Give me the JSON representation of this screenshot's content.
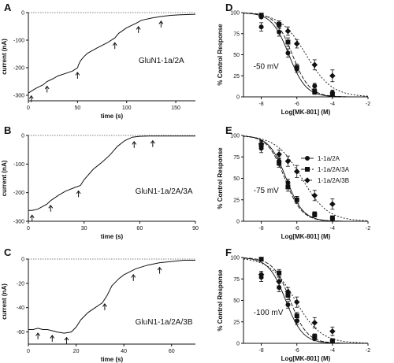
{
  "chart_data": [
    {
      "panel": "A",
      "type": "line",
      "xlabel": "time (s)",
      "ylabel": "current (nA)",
      "xlim": [
        0,
        170
      ],
      "ylim": [
        -320,
        0
      ],
      "xticks": [
        0,
        50,
        100,
        150
      ],
      "yticks": [
        0,
        -100,
        -200,
        -300
      ],
      "annotation": "GluN1-1a/2A",
      "trace": {
        "x": [
          0,
          3,
          8,
          15,
          19,
          25,
          30,
          40,
          45,
          50,
          51,
          53,
          56,
          60,
          70,
          80,
          88,
          92,
          100,
          110,
          115,
          125,
          135,
          145,
          155,
          170
        ],
        "y": [
          -292,
          -285,
          -274,
          -262,
          -250,
          -240,
          -230,
          -218,
          -212,
          -200,
          -190,
          -175,
          -162,
          -148,
          -128,
          -110,
          -92,
          -75,
          -55,
          -38,
          -28,
          -20,
          -14,
          -10,
          -8,
          -6
        ]
      },
      "arrows_x": [
        3,
        19,
        50,
        88,
        112,
        135
      ]
    },
    {
      "panel": "D",
      "type": "scatter",
      "xlabel": "Log[MK-801] (M)",
      "ylabel": "% Control Response",
      "xlim": [
        -9,
        -2
      ],
      "ylim": [
        0,
        100
      ],
      "xticks": [
        -8,
        -6,
        -4,
        -2
      ],
      "yticks": [
        0,
        25,
        50,
        75,
        100
      ],
      "annotation": "-50 mV",
      "series": [
        {
          "name": "1-1a/2A",
          "marker": "circle",
          "x": [
            -8,
            -7,
            -6.5,
            -6,
            -5,
            -4
          ],
          "y": [
            83,
            77,
            52,
            33,
            13,
            5
          ],
          "err": [
            5,
            5,
            5,
            4,
            3,
            3
          ]
        },
        {
          "name": "1-1a/2A/3A",
          "marker": "square",
          "x": [
            -8,
            -7,
            -6.5,
            -6,
            -5,
            -4
          ],
          "y": [
            97,
            86,
            65,
            35,
            6,
            3
          ],
          "err": [
            2,
            4,
            5,
            4,
            3,
            2
          ]
        },
        {
          "name": "1-1a/2A/3B",
          "marker": "diamond",
          "x": [
            -8,
            -7,
            -6.5,
            -6,
            -5,
            -4
          ],
          "y": [
            95,
            86,
            78,
            63,
            38,
            25
          ],
          "err": [
            2,
            4,
            5,
            5,
            6,
            7
          ]
        }
      ]
    },
    {
      "panel": "B",
      "type": "line",
      "xlabel": "time (s)",
      "ylabel": "current (nA)",
      "xlim": [
        0,
        90
      ],
      "ylim": [
        -300,
        0
      ],
      "xticks": [
        0,
        30,
        60,
        90
      ],
      "yticks": [
        0,
        -100,
        -200,
        -300
      ],
      "annotation": "GluN1-1a/2A/3A",
      "trace": {
        "x": [
          0,
          2,
          5,
          10,
          12,
          16,
          20,
          25,
          28,
          30,
          35,
          40,
          44,
          48,
          52,
          56,
          60,
          65,
          70,
          75,
          80,
          90
        ],
        "y": [
          -262,
          -262,
          -258,
          -240,
          -228,
          -210,
          -195,
          -182,
          -175,
          -155,
          -118,
          -92,
          -68,
          -38,
          -18,
          -6,
          -3,
          -2,
          -2,
          -2,
          -2,
          -2
        ]
      },
      "arrows_x": [
        2,
        12,
        27,
        57,
        67
      ]
    },
    {
      "panel": "E",
      "type": "scatter",
      "xlabel": "Log[MK-801] (M)",
      "ylabel": "% Control Response",
      "xlim": [
        -9,
        -2
      ],
      "ylim": [
        0,
        100
      ],
      "xticks": [
        -8,
        -6,
        -4,
        -2
      ],
      "yticks": [
        0,
        25,
        50,
        75,
        100
      ],
      "annotation": "-75 mV",
      "legend": [
        "1-1a/2A",
        "1-1a/2A/3A",
        "1-1a/2A/3B"
      ],
      "series": [
        {
          "name": "1-1a/2A",
          "marker": "circle",
          "x": [
            -8,
            -7,
            -6.5,
            -6,
            -5,
            -4
          ],
          "y": [
            85,
            70,
            45,
            25,
            8,
            3
          ],
          "err": [
            5,
            5,
            4,
            4,
            3,
            2
          ]
        },
        {
          "name": "1-1a/2A/3A",
          "marker": "square",
          "x": [
            -8,
            -7,
            -6.5,
            -6,
            -5,
            -4
          ],
          "y": [
            89,
            68,
            40,
            25,
            8,
            4
          ],
          "err": [
            4,
            5,
            5,
            4,
            3,
            2
          ]
        },
        {
          "name": "1-1a/2A/3B",
          "marker": "diamond",
          "x": [
            -8,
            -7,
            -6.5,
            -6,
            -5,
            -4
          ],
          "y": [
            90,
            78,
            70,
            58,
            30,
            20
          ],
          "err": [
            4,
            5,
            6,
            7,
            6,
            6
          ]
        }
      ]
    },
    {
      "panel": "C",
      "type": "line",
      "xlabel": "time (s)",
      "ylabel": "current (nA)",
      "xlim": [
        0,
        70
      ],
      "ylim": [
        -70,
        0
      ],
      "xticks": [
        0,
        20,
        40,
        60
      ],
      "yticks": [
        0,
        -20,
        -40,
        -60
      ],
      "annotation": "GluN1-1a/2A/3B",
      "trace": {
        "x": [
          0,
          2,
          4,
          6,
          8,
          10,
          12,
          15,
          18,
          20,
          22,
          25,
          28,
          31,
          33,
          35,
          38,
          40,
          43,
          45,
          50,
          55,
          60,
          65,
          70
        ],
        "y": [
          -58,
          -58,
          -57,
          -58,
          -58,
          -59,
          -60,
          -61,
          -60,
          -56,
          -50,
          -44,
          -40,
          -36,
          -30,
          -22,
          -16,
          -13,
          -10,
          -8,
          -5,
          -3,
          -2,
          -1,
          -1
        ]
      },
      "arrows_x": [
        4,
        10,
        16,
        32,
        44,
        55
      ]
    },
    {
      "panel": "F",
      "type": "scatter",
      "xlabel": "Log[MK-801] (M)",
      "ylabel": "% Control Response",
      "xlim": [
        -9,
        -2
      ],
      "ylim": [
        0,
        100
      ],
      "xticks": [
        -8,
        -6,
        -4,
        -2
      ],
      "yticks": [
        0,
        25,
        50,
        75,
        100
      ],
      "annotation": "-100 mV",
      "series": [
        {
          "name": "1-1a/2A",
          "marker": "circle",
          "x": [
            -8,
            -7,
            -6.5,
            -6,
            -5,
            -4
          ],
          "y": [
            77,
            65,
            45,
            26,
            6,
            3
          ],
          "err": [
            5,
            5,
            4,
            4,
            3,
            2
          ]
        },
        {
          "name": "1-1a/2A/3A",
          "marker": "square",
          "x": [
            -8,
            -7,
            -6.5,
            -6,
            -5,
            -4
          ],
          "y": [
            98,
            82,
            56,
            32,
            8,
            3
          ],
          "err": [
            2,
            4,
            5,
            4,
            3,
            2
          ]
        },
        {
          "name": "1-1a/2A/3B",
          "marker": "diamond",
          "x": [
            -8,
            -7,
            -6.5,
            -6,
            -5,
            -4
          ],
          "y": [
            80,
            72,
            60,
            48,
            24,
            14
          ],
          "err": [
            4,
            5,
            5,
            6,
            6,
            5
          ]
        }
      ]
    }
  ]
}
